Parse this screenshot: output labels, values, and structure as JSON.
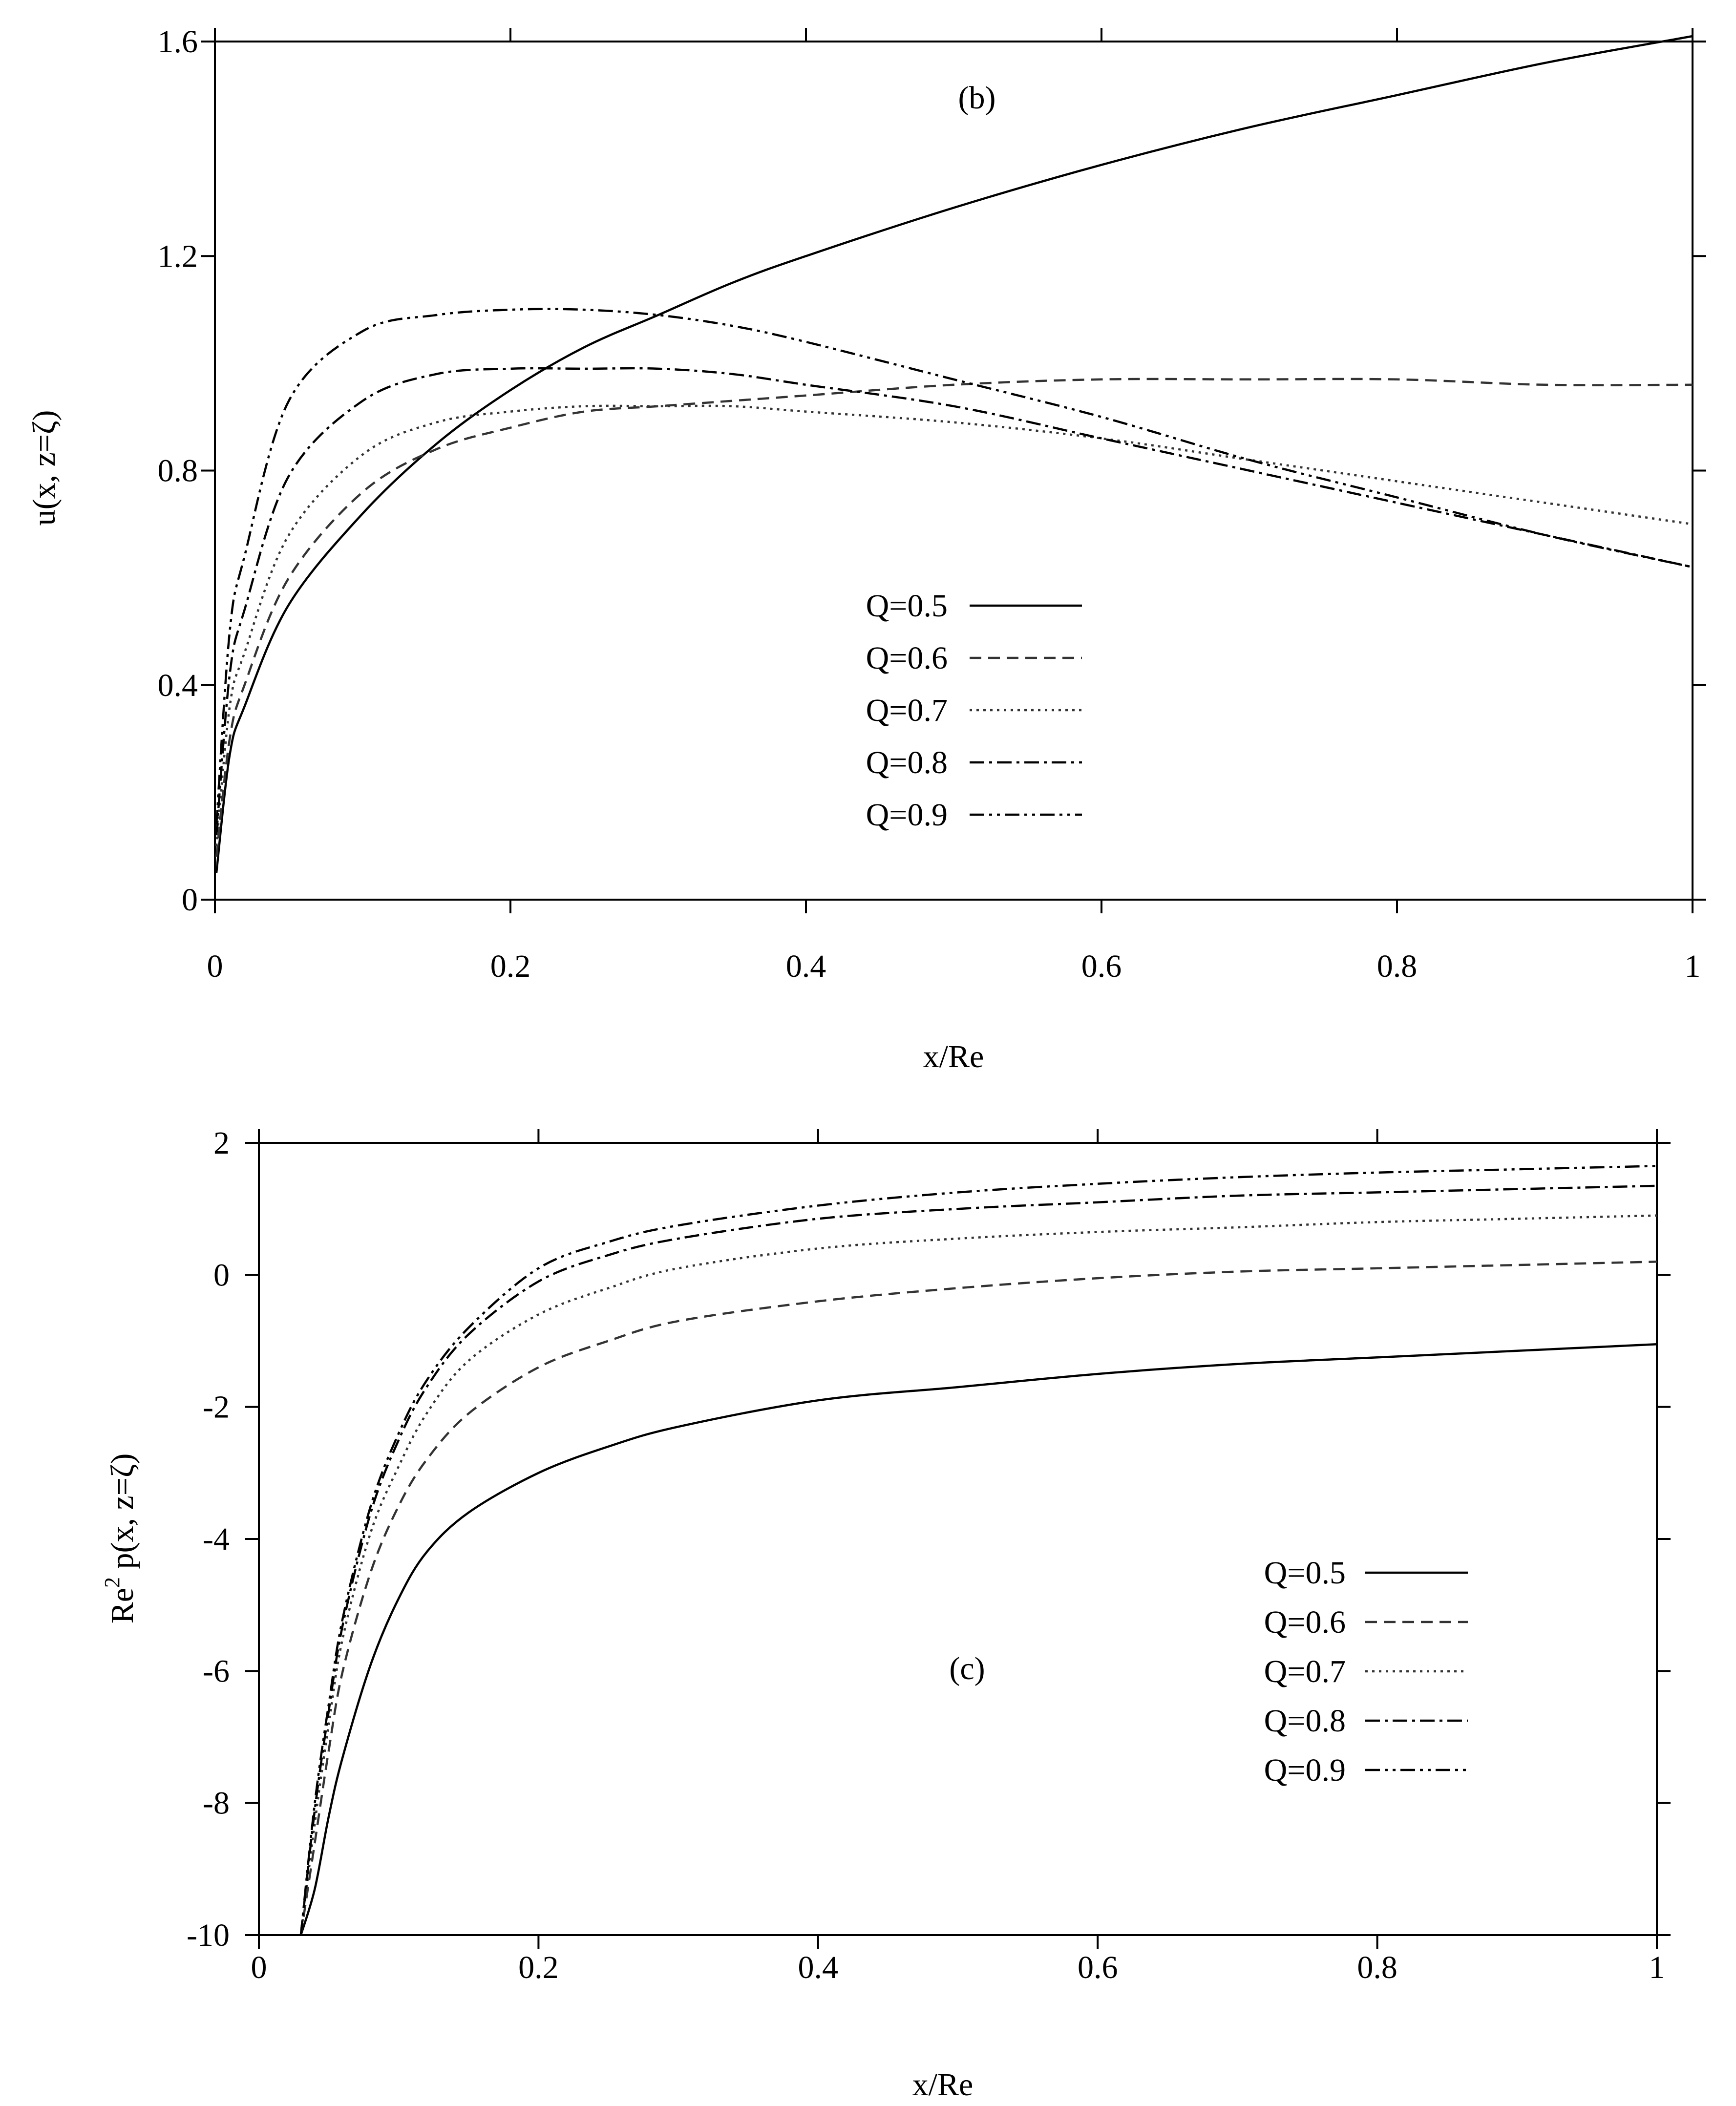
{
  "chart_data": [
    {
      "type": "line",
      "panel_label": "(b)",
      "xlabel": "x/Re",
      "ylabel": "u(x,  z=ζ)",
      "xlim": [
        0,
        1
      ],
      "ylim": [
        0,
        1.6
      ],
      "xticks": [
        0,
        0.2,
        0.4,
        0.6,
        0.8,
        1
      ],
      "xtick_labels": [
        "0",
        "0.2",
        "0.4",
        "0.6",
        "0.8",
        "1"
      ],
      "yticks": [
        0,
        0.4,
        0.8,
        1.2,
        1.6
      ],
      "ytick_labels": [
        "0",
        "0.4",
        "0.8",
        "1.2",
        "1.6"
      ],
      "grid": false,
      "legend_position": "lower-center",
      "x": [
        0.001,
        0.01,
        0.02,
        0.05,
        0.1,
        0.15,
        0.2,
        0.25,
        0.3,
        0.35,
        0.4,
        0.5,
        0.6,
        0.7,
        0.8,
        0.9,
        1.0
      ],
      "series": [
        {
          "name": "Q=0.5",
          "dash": "solid",
          "color": "#000000",
          "values": [
            0.05,
            0.27,
            0.36,
            0.55,
            0.72,
            0.85,
            0.95,
            1.03,
            1.09,
            1.15,
            1.2,
            1.29,
            1.37,
            1.44,
            1.5,
            1.56,
            1.61
          ]
        },
        {
          "name": "Q=0.6",
          "dash": "dashed",
          "color": "#333333",
          "values": [
            0.08,
            0.3,
            0.4,
            0.6,
            0.76,
            0.84,
            0.88,
            0.91,
            0.92,
            0.93,
            0.94,
            0.96,
            0.97,
            0.97,
            0.97,
            0.96,
            0.96
          ]
        },
        {
          "name": "Q=0.7",
          "dash": "dotted",
          "color": "#333333",
          "values": [
            0.1,
            0.36,
            0.46,
            0.68,
            0.83,
            0.89,
            0.91,
            0.92,
            0.92,
            0.92,
            0.91,
            0.89,
            0.86,
            0.82,
            0.78,
            0.74,
            0.7
          ]
        },
        {
          "name": "Q=0.8",
          "dash": "dash-dot",
          "color": "#000000",
          "values": [
            0.12,
            0.42,
            0.54,
            0.79,
            0.93,
            0.98,
            0.99,
            0.99,
            0.99,
            0.98,
            0.96,
            0.92,
            0.86,
            0.8,
            0.74,
            0.68,
            0.62
          ]
        },
        {
          "name": "Q=0.9",
          "dash": "dash-dot-dot",
          "color": "#000000",
          "values": [
            0.14,
            0.5,
            0.64,
            0.93,
            1.06,
            1.09,
            1.1,
            1.1,
            1.09,
            1.07,
            1.04,
            0.97,
            0.9,
            0.82,
            0.75,
            0.68,
            0.62
          ]
        }
      ]
    },
    {
      "type": "line",
      "panel_label": "(c)",
      "xlabel": "x/Re",
      "ylabel": "Re² p(x, z=ζ)",
      "ylabel_base": "Re",
      "ylabel_sup": "2",
      "ylabel_rest": " p(x, z=ζ)",
      "xlim": [
        0,
        1
      ],
      "ylim": [
        -10,
        2
      ],
      "xticks": [
        0,
        0.2,
        0.4,
        0.6,
        0.8,
        1
      ],
      "xtick_labels": [
        "0",
        "0.2",
        "0.4",
        "0.6",
        "0.8",
        "1"
      ],
      "yticks": [
        -10,
        -8,
        -6,
        -4,
        -2,
        0,
        2
      ],
      "ytick_labels": [
        "-10",
        "-8",
        "-6",
        "-4",
        "-2",
        "0",
        "2"
      ],
      "grid": false,
      "legend_position": "lower-right",
      "x": [
        0.03,
        0.04,
        0.05,
        0.06,
        0.08,
        0.1,
        0.12,
        0.15,
        0.2,
        0.25,
        0.3,
        0.4,
        0.5,
        0.6,
        0.7,
        0.8,
        0.9,
        1.0
      ],
      "series": [
        {
          "name": "Q=0.5",
          "dash": "solid",
          "color": "#000000",
          "values": [
            -10.0,
            -9.3,
            -8.2,
            -7.3,
            -5.9,
            -4.9,
            -4.2,
            -3.6,
            -3.0,
            -2.6,
            -2.3,
            -1.9,
            -1.7,
            -1.5,
            -1.35,
            -1.25,
            -1.15,
            -1.05
          ]
        },
        {
          "name": "Q=0.6",
          "dash": "dashed",
          "color": "#333333",
          "values": [
            -10.0,
            -8.6,
            -7.2,
            -6.0,
            -4.5,
            -3.5,
            -2.8,
            -2.1,
            -1.4,
            -1.0,
            -0.7,
            -0.4,
            -0.2,
            -0.05,
            0.05,
            0.1,
            0.15,
            0.2
          ]
        },
        {
          "name": "Q=0.7",
          "dash": "dotted",
          "color": "#333333",
          "values": [
            -10.0,
            -8.3,
            -6.8,
            -5.5,
            -3.9,
            -2.9,
            -2.1,
            -1.3,
            -0.6,
            -0.2,
            0.1,
            0.4,
            0.55,
            0.65,
            0.72,
            0.8,
            0.85,
            0.9
          ]
        },
        {
          "name": "Q=0.8",
          "dash": "dash-dot",
          "color": "#000000",
          "values": [
            -10.0,
            -8.1,
            -6.6,
            -5.3,
            -3.6,
            -2.5,
            -1.7,
            -0.9,
            -0.1,
            0.3,
            0.55,
            0.85,
            1.0,
            1.1,
            1.2,
            1.25,
            1.3,
            1.35
          ]
        },
        {
          "name": "Q=0.9",
          "dash": "dash-dot-dot",
          "color": "#000000",
          "values": [
            -10.0,
            -8.0,
            -6.5,
            -5.2,
            -3.5,
            -2.4,
            -1.6,
            -0.8,
            0.1,
            0.5,
            0.75,
            1.05,
            1.25,
            1.38,
            1.48,
            1.55,
            1.6,
            1.65
          ]
        }
      ]
    }
  ]
}
